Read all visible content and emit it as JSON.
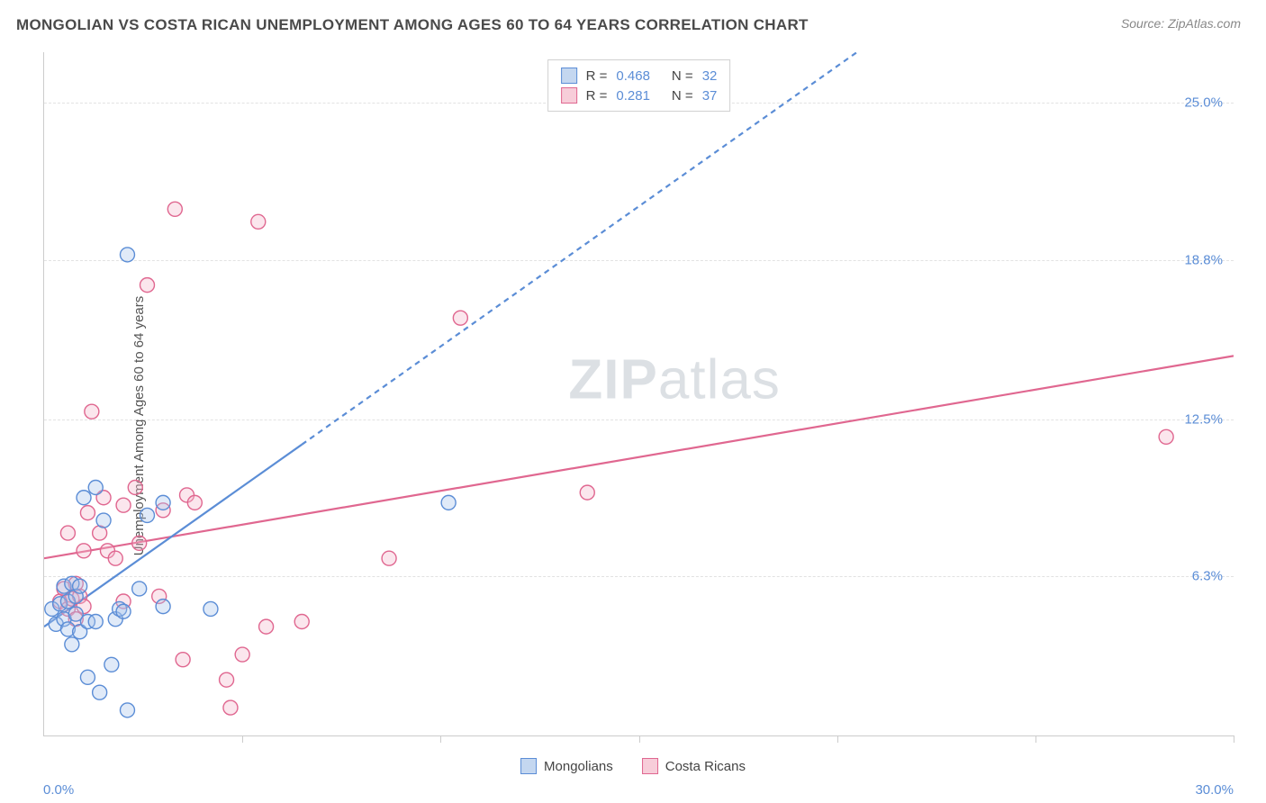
{
  "header": {
    "title": "MONGOLIAN VS COSTA RICAN UNEMPLOYMENT AMONG AGES 60 TO 64 YEARS CORRELATION CHART",
    "source": "Source: ZipAtlas.com"
  },
  "y_axis_label": "Unemployment Among Ages 60 to 64 years",
  "watermark": {
    "bold": "ZIP",
    "light": "atlas"
  },
  "chart": {
    "type": "scatter",
    "xlim": [
      0,
      30
    ],
    "ylim": [
      0,
      27
    ],
    "background_color": "#ffffff",
    "grid_color": "#e2e2e2",
    "axis_color": "#cccccc",
    "y_ticks": [
      {
        "value": 6.3,
        "label": "6.3%"
      },
      {
        "value": 12.5,
        "label": "12.5%"
      },
      {
        "value": 18.8,
        "label": "18.8%"
      },
      {
        "value": 25.0,
        "label": "25.0%"
      }
    ],
    "x_ticks_minor": [
      5,
      10,
      15,
      20,
      25,
      30
    ],
    "x_label_min": "0.0%",
    "x_label_max": "30.0%",
    "tick_label_color": "#5b8dd6",
    "marker_radius": 8,
    "marker_stroke_width": 1.4,
    "marker_fill_opacity": 0.35,
    "trend_line_width": 2.2,
    "trend_dash": "6,5"
  },
  "series": {
    "mongolians": {
      "label": "Mongolians",
      "color_stroke": "#5b8dd6",
      "color_fill": "#a7c4ea",
      "swatch_fill": "#c4d7f0",
      "swatch_border": "#5b8dd6",
      "r_stat": "0.468",
      "n_stat": "32",
      "trend": {
        "x1": 0,
        "y1": 4.3,
        "x2": 20.5,
        "y2": 27,
        "dashed_after_x": 6.5
      },
      "points": [
        [
          0.2,
          5.0
        ],
        [
          0.3,
          4.4
        ],
        [
          0.4,
          5.2
        ],
        [
          0.5,
          4.6
        ],
        [
          0.5,
          5.9
        ],
        [
          0.6,
          5.3
        ],
        [
          0.6,
          4.2
        ],
        [
          0.7,
          6.0
        ],
        [
          0.7,
          3.6
        ],
        [
          0.8,
          4.8
        ],
        [
          0.8,
          5.5
        ],
        [
          0.9,
          4.1
        ],
        [
          0.9,
          5.9
        ],
        [
          1.0,
          9.4
        ],
        [
          1.1,
          4.5
        ],
        [
          1.1,
          2.3
        ],
        [
          1.3,
          9.8
        ],
        [
          1.3,
          4.5
        ],
        [
          1.4,
          1.7
        ],
        [
          1.5,
          8.5
        ],
        [
          1.7,
          2.8
        ],
        [
          1.8,
          4.6
        ],
        [
          1.9,
          5.0
        ],
        [
          2.0,
          4.9
        ],
        [
          2.1,
          19.0
        ],
        [
          2.1,
          1.0
        ],
        [
          2.4,
          5.8
        ],
        [
          2.6,
          8.7
        ],
        [
          3.0,
          9.2
        ],
        [
          3.0,
          5.1
        ],
        [
          4.2,
          5.0
        ],
        [
          10.2,
          9.2
        ]
      ]
    },
    "costa_ricans": {
      "label": "Costa Ricans",
      "color_stroke": "#e06790",
      "color_fill": "#f3b6ca",
      "swatch_fill": "#f7cdd9",
      "swatch_border": "#e06790",
      "r_stat": "0.281",
      "n_stat": "37",
      "trend": {
        "x1": 0,
        "y1": 7.0,
        "x2": 30,
        "y2": 15.0,
        "dashed_after_x": 0
      },
      "points": [
        [
          0.4,
          5.3
        ],
        [
          0.5,
          5.8
        ],
        [
          0.6,
          8.0
        ],
        [
          0.6,
          5.0
        ],
        [
          0.7,
          5.4
        ],
        [
          0.8,
          6.0
        ],
        [
          0.8,
          4.6
        ],
        [
          0.9,
          5.5
        ],
        [
          1.0,
          7.3
        ],
        [
          1.0,
          5.1
        ],
        [
          1.1,
          8.8
        ],
        [
          1.2,
          12.8
        ],
        [
          1.4,
          8.0
        ],
        [
          1.5,
          9.4
        ],
        [
          1.6,
          7.3
        ],
        [
          1.8,
          7.0
        ],
        [
          2.0,
          5.3
        ],
        [
          2.0,
          9.1
        ],
        [
          2.3,
          9.8
        ],
        [
          2.4,
          7.6
        ],
        [
          2.6,
          17.8
        ],
        [
          2.9,
          5.5
        ],
        [
          3.0,
          8.9
        ],
        [
          3.3,
          20.8
        ],
        [
          3.5,
          3.0
        ],
        [
          3.6,
          9.5
        ],
        [
          3.8,
          9.2
        ],
        [
          4.6,
          2.2
        ],
        [
          4.7,
          1.1
        ],
        [
          5.0,
          3.2
        ],
        [
          5.4,
          20.3
        ],
        [
          5.6,
          4.3
        ],
        [
          6.5,
          4.5
        ],
        [
          8.7,
          7.0
        ],
        [
          10.5,
          16.5
        ],
        [
          13.7,
          9.6
        ],
        [
          28.3,
          11.8
        ]
      ]
    }
  },
  "legend_top": {
    "r_prefix": "R =",
    "n_prefix": "N ="
  }
}
